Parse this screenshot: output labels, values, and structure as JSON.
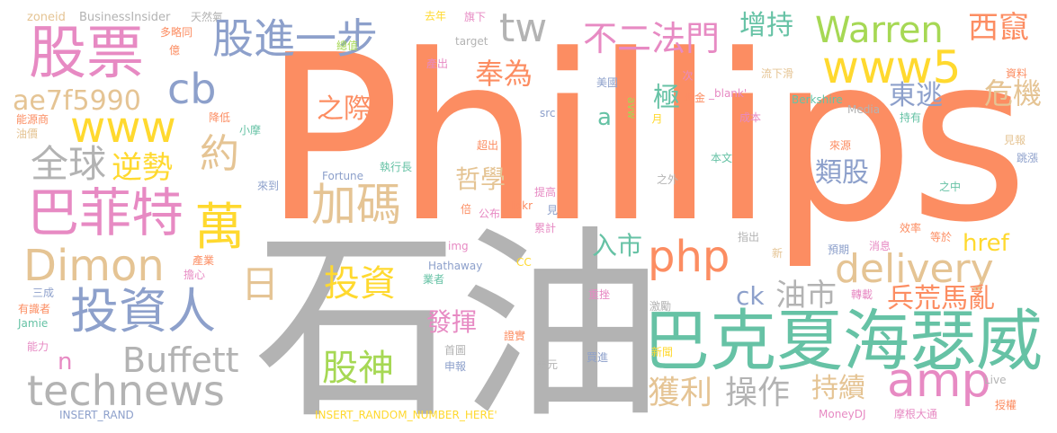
{
  "palette": {
    "orange": "#fc8d62",
    "gray": "#b3b3b3",
    "green": "#66c2a5",
    "blue": "#8da0cb",
    "pink": "#e78ac3",
    "lime": "#a6d854",
    "yellow": "#ffd92f",
    "tan": "#e5c494"
  },
  "words": {
    "philips": "Phillips",
    "shiyou": "石油",
    "bakexia": "巴克夏海瑟威",
    "gupiao": "股票",
    "gujinyibu": "股進一步",
    "tw": "tw",
    "buerfamen": "不二法門",
    "zengchi": "增持",
    "warren": "Warren",
    "xichuan": "西竄",
    "www5": "www5",
    "cb": "cb",
    "fengwei": "奉為",
    "ji": "極",
    "dongtao": "東逃",
    "weiji": "危機",
    "ae7f": "ae7f5990",
    "www": "www",
    "zhiji": "之際",
    "a": "a",
    "quanqiu": "全球",
    "nishi": "逆勢",
    "yue": "約",
    "jiama": "加碼",
    "zhexue": "哲學",
    "leigu": "類股",
    "bafeite": "巴菲特",
    "wan": "萬",
    "delivery": "delivery",
    "href": "href",
    "dimon": "Dimon",
    "php": "php",
    "rushi": "入市",
    "ri": "日",
    "touzi": "投資",
    "ck": "ck",
    "youshi": "油市",
    "binghuang": "兵荒馬亂",
    "touziren": "投資人",
    "amp": "amp",
    "fahui": "發揮",
    "buffett": "Buffett",
    "gushen": "股神",
    "n": "n",
    "technews": "technews",
    "huoli": "獲利",
    "caozuo": "操作",
    "chixu": "持續",
    "zoneid": "zoneid",
    "businessinsider": "BusinessInsider",
    "tianranqi": "天然氣",
    "qunian": "去年",
    "duolue": "多略同",
    "zongzhi": "總值",
    "yi": "億",
    "qixia": "旗下",
    "target": "target",
    "chanchu": "產出",
    "meiguo": "美國",
    "ci": "次",
    "ziliao": "資料",
    "liuxiahua": "流下滑",
    "media": "Media",
    "nengyuanshang": "能源商",
    "youjia": "油價",
    "jiangdi": "降低",
    "xiaomo": "小摩",
    "src": "src",
    "yue2": "月",
    "avw": "avw",
    "xianjin": "現金",
    "blank": "_blank'",
    "berkshire": "Berkshire",
    "chengben": "成本",
    "chiyou": "持有",
    "jianbao": "見報",
    "tiaozhang": "跳漲",
    "chaochu": "超出",
    "benwen": "本文",
    "laiyuan": "來源",
    "fortune": "Fortune",
    "zhixingzhang": "執行長",
    "laidao": "來到",
    "zhiwai": "之外",
    "zhizhong": "之中",
    "tigao": "提高",
    "jian": "見",
    "flickr": "Flickr",
    "bei": "倍",
    "gongbu": "公布",
    "leiji": "累計",
    "xiaolv": "效率",
    "zhichu": "指出",
    "xin": "新",
    "yuqi": "預期",
    "xiaoxi": "消息",
    "dengyu": "等於",
    "img": "img",
    "chanye": "產業",
    "danxin": "擔心",
    "hathaway": "Hathaway",
    "yezhe": "業者",
    "cc": "CC",
    "sancheng": "三成",
    "youshizhe": "有識者",
    "jamie": "Jamie",
    "zhongcuo": "重挫",
    "zhuanzai": "轉載",
    "jili": "激勵",
    "nengli": "能力",
    "xinwen": "新聞",
    "zhengshi": "證實",
    "shouye": "首圖",
    "shenbao": "申報",
    "meiyuan": "美元",
    "maijin": "買進",
    "live": "Live",
    "shouquan": "授權",
    "insert_rand": "INSERT_RAND",
    "insert_random": "INSERT_RANDOM_NUMBER_HERE'",
    "moneydj": "MoneyDJ",
    "mogendatong": "摩根大通"
  }
}
